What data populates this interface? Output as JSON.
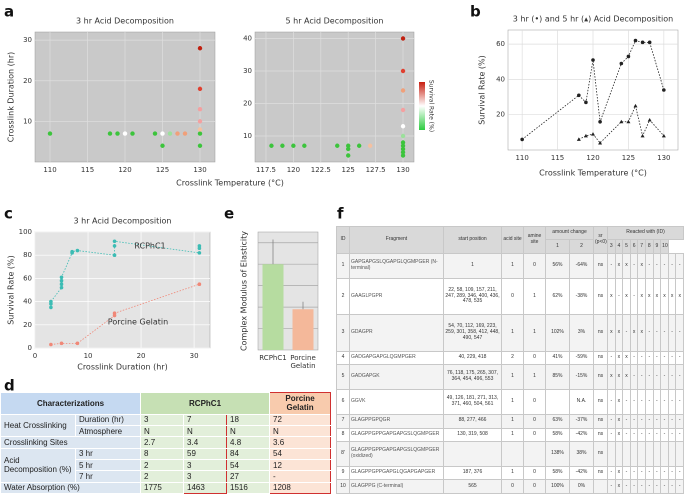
{
  "panel_labels": [
    "a",
    "b",
    "c",
    "d",
    "e",
    "f"
  ],
  "chart_data": [
    {
      "type": "scatter",
      "title": "3 hr Acid Decomposition",
      "ylabel": "Crosslink Duration (hr)",
      "xlabel": "Crosslink Temperature (°C)",
      "xlim": [
        108,
        132
      ],
      "xticks": [
        110,
        115,
        120,
        125,
        130
      ],
      "ylim": [
        0,
        32
      ],
      "yticks": [
        10,
        20,
        30
      ],
      "grid": true,
      "x": [
        110,
        118,
        119,
        120,
        121,
        124,
        125,
        125,
        126,
        127,
        128,
        130,
        130,
        130,
        130,
        130,
        130,
        130
      ],
      "y": [
        7,
        7,
        7,
        7,
        7,
        7,
        7,
        4,
        7,
        7,
        7,
        4,
        7,
        8,
        10,
        13,
        18,
        28
      ],
      "colors": [
        "#3cc43c",
        "#3cc43c",
        "#3cc43c",
        "#ffffff",
        "#3cc43c",
        "#3cc43c",
        "#ffffff",
        "#3cc43c",
        "#9be09b",
        "#f0a07a",
        "#f0a07a",
        "#3cc43c",
        "#3cc43c",
        "#f5c0a0",
        "#f4a0a0",
        "#f4a0a0",
        "#e04030",
        "#c02010"
      ]
    },
    {
      "type": "scatter",
      "title": "5 hr Acid Decomposition",
      "colorbar_label": "Survival Rate (%)",
      "xlim": [
        116.5,
        131
      ],
      "xticks": [
        117.5,
        120,
        122.5,
        125,
        127.5,
        130
      ],
      "ylim": [
        2,
        42
      ],
      "yticks": [
        10,
        20,
        30,
        40
      ],
      "grid": true,
      "x": [
        118,
        119,
        120,
        121,
        124,
        125,
        125,
        125,
        126,
        127,
        130,
        130,
        130,
        130,
        130,
        130,
        130,
        130,
        130,
        130,
        130
      ],
      "y": [
        7,
        7,
        7,
        7,
        7,
        7,
        6,
        4,
        7,
        7,
        4,
        5,
        6,
        7,
        8,
        10,
        13,
        18,
        24,
        30,
        40
      ],
      "colors": [
        "#3cc43c",
        "#3cc43c",
        "#3cc43c",
        "#3cc43c",
        "#3cc43c",
        "#3cc43c",
        "#3cc43c",
        "#3cc43c",
        "#3cc43c",
        "#f5c0a0",
        "#3cc43c",
        "#3cc43c",
        "#3cc43c",
        "#3cc43c",
        "#3cc43c",
        "#9be09b",
        "#ffffff",
        "#f4a0a0",
        "#f0a07a",
        "#e04030",
        "#c02010"
      ]
    },
    {
      "type": "line",
      "title": "3 hr (•) and 5 hr (▴) Acid Decomposition",
      "ylabel": "Survival Rate (%)",
      "xlabel": "Crosslink Temperature (°C)",
      "xlim": [
        108,
        132
      ],
      "xticks": [
        110,
        115,
        120,
        125,
        130
      ],
      "ylim": [
        0,
        68
      ],
      "yticks": [
        20,
        40,
        60
      ],
      "grid": true,
      "series": [
        {
          "color": "#222222",
          "marker": "circle",
          "x": [
            110,
            118,
            119,
            120,
            121,
            124,
            125,
            126,
            127,
            128,
            130
          ],
          "values": [
            6,
            31,
            27,
            51,
            16,
            49,
            53,
            62,
            61,
            61,
            34
          ]
        },
        {
          "color": "#222222",
          "marker": "triangle",
          "x": [
            118,
            119,
            120,
            121,
            124,
            125,
            126,
            127,
            128,
            130
          ],
          "values": [
            6,
            8,
            9,
            4,
            16,
            16,
            25,
            8,
            17,
            8
          ]
        }
      ]
    },
    {
      "type": "line",
      "title": "3 hr Acid Decomposition",
      "ylabel": "Survival Rate (%)",
      "xlabel": "Crosslink Duration (hr)",
      "xlim": [
        0,
        33
      ],
      "xticks": [
        0,
        10,
        20,
        30
      ],
      "ylim": [
        0,
        100
      ],
      "yticks": [
        0,
        20,
        40,
        60,
        80,
        100
      ],
      "grid": true,
      "series": [
        {
          "name": "RCPhC1",
          "color": "#3cbcb4",
          "marker": "circle",
          "x": [
            3,
            3,
            3,
            5,
            5,
            5,
            5,
            7,
            7,
            8,
            15,
            15,
            15,
            31,
            31,
            31
          ],
          "values": [
            35,
            38,
            40,
            52,
            55,
            58,
            61,
            82,
            83,
            84,
            80,
            88,
            92,
            82,
            86,
            88
          ]
        },
        {
          "name": "Porcine Gelatin",
          "color": "#f08878",
          "marker": "circle",
          "x": [
            3,
            5,
            8,
            15,
            15,
            31
          ],
          "values": [
            3,
            4,
            4,
            28,
            30,
            55
          ]
        }
      ]
    },
    {
      "type": "bar",
      "ylabel": "Complex Modulus of Elasticity",
      "categories": [
        "RCPhC1",
        "Porcine Gelatin"
      ],
      "values": [
        80,
        38
      ],
      "errors": [
        23,
        7
      ],
      "colors": [
        "#b6dca0",
        "#f4b89a"
      ],
      "ylim": [
        0,
        110
      ],
      "grid_lines": [
        20,
        40,
        60,
        80,
        100
      ]
    }
  ],
  "table_d": {
    "header": [
      "Characterizations",
      "RCPhC1",
      "Porcine Gelatin"
    ],
    "rows": [
      {
        "label": "Heat Crosslinking",
        "sub": [
          {
            "label": "Duration (hr)",
            "cells": [
              "3",
              "7",
              "18",
              "72"
            ]
          },
          {
            "label": "Atmosphere",
            "cells": [
              "N",
              "N",
              "N",
              "N"
            ]
          }
        ]
      },
      {
        "label": "Crosslinking Sites",
        "cells": [
          "2.7",
          "3.4",
          "4.8",
          "3.6"
        ]
      },
      {
        "label": "Acid Decomposition (%)",
        "sub": [
          {
            "label": "3 hr",
            "cells": [
              "8",
              "59",
              "84",
              "54"
            ]
          },
          {
            "label": "5 hr",
            "cells": [
              "2",
              "3",
              "54",
              "12"
            ]
          },
          {
            "label": "7 hr",
            "cells": [
              "2",
              "3",
              "27",
              "-"
            ]
          }
        ]
      },
      {
        "label": "Water Absorption (%)",
        "cells": [
          "1775",
          "1463",
          "1516",
          "1208"
        ]
      }
    ]
  },
  "table_f": {
    "headers": [
      "ID",
      "Fragment",
      "start position",
      "acid site",
      "amine site",
      "amount change",
      "sr (p<0)",
      "Reacted with (ID)"
    ],
    "reacted_ids": [
      "1",
      "2",
      "3",
      "4",
      "5",
      "6",
      "7",
      "8",
      "9",
      "10"
    ],
    "rows": [
      {
        "cells": [
          "1",
          "GAPGAPGSLQGAPGLQGMPGER (N-terminal)",
          "1",
          "1",
          "0",
          "56%",
          "-64%",
          "ns"
        ],
        "reacted": [
          "-",
          "x",
          "x",
          "-",
          "x",
          "-",
          "-",
          "-",
          "-",
          "-"
        ]
      },
      {
        "cells": [
          "2",
          "GAAGLPGPR",
          "22, 58, 109, 157, 211, 247, 289, 346, 400, 436, 478, 535",
          "0",
          "1",
          "62%",
          "-38%",
          "ns"
        ],
        "reacted": [
          "x",
          "-",
          "x",
          "-",
          "x",
          "x",
          "x",
          "x",
          "x",
          "x"
        ]
      },
      {
        "cells": [
          "3",
          "GDAGPR",
          "54, 70, 112, 169, 223, 259, 301, 358, 412, 448, 490, 547",
          "1",
          "1",
          "102%",
          "3%",
          "ns"
        ],
        "reacted": [
          "x",
          "x",
          "-",
          "x",
          "x",
          "-",
          "-",
          "-",
          "-",
          "-"
        ]
      },
      {
        "cells": [
          "4",
          "GADGAPGAPGLQGMPGER",
          "40, 229, 418",
          "2",
          "0",
          "41%",
          "-59%",
          "ns"
        ],
        "reacted": [
          "-",
          "x",
          "x",
          "-",
          "-",
          "-",
          "-",
          "-",
          "-",
          "-"
        ]
      },
      {
        "cells": [
          "5",
          "GADGAPGK",
          "76, 118, 175, 265, 307, 364, 454, 496, 553",
          "1",
          "1",
          "85%",
          "-15%",
          "ns"
        ],
        "reacted": [
          "x",
          "x",
          "x",
          "-",
          "-",
          "-",
          "-",
          "-",
          "-",
          "-"
        ]
      },
      {
        "cells": [
          "6",
          "GGVK",
          "49, 126, 181, 271, 313, 371, 460, 504, 561",
          "1",
          "0",
          null,
          "N.A.",
          "ns"
        ],
        "reacted": [
          "-",
          "x",
          "-",
          "-",
          "-",
          "-",
          "-",
          "-",
          "-",
          "-"
        ]
      },
      {
        "cells": [
          "7",
          "GLAGPPGPQGR",
          "88, 277, 466",
          "1",
          "0",
          "63%",
          "-37%",
          "ns"
        ],
        "reacted": [
          "-",
          "x",
          "-",
          "-",
          "-",
          "-",
          "-",
          "-",
          "-",
          "-"
        ]
      },
      {
        "cells": [
          "8",
          "GLAGPPGPPGAPGAPGSLQGMPGER",
          "130, 319, 508",
          "1",
          "0",
          "58%",
          "-42%",
          "ns"
        ],
        "reacted": [
          "-",
          "x",
          "-",
          "-",
          "-",
          "-",
          "-",
          "-",
          "-",
          "-"
        ]
      },
      {
        "cells": [
          "8'",
          "GLAGPPGPPGAPGAPGSLQGMPGER (oxidized)",
          null,
          null,
          null,
          "138%",
          "38%",
          "ns"
        ],
        "reacted": [
          null,
          null,
          null,
          null,
          null,
          null,
          null,
          null,
          null,
          null
        ]
      },
      {
        "cells": [
          "9",
          "GLAGPPGPPGAPGLQGAPGAPGER",
          "187, 376",
          "1",
          "0",
          "58%",
          "-42%",
          "ns"
        ],
        "reacted": [
          "-",
          "x",
          "-",
          "-",
          "-",
          "-",
          "-",
          "-",
          "-",
          "-"
        ]
      },
      {
        "cells": [
          "10",
          "GLAGPPG (C-terminal)",
          "565",
          "0",
          "0",
          "100%",
          "0%",
          null
        ],
        "reacted": [
          "-",
          "x",
          "-",
          "-",
          "-",
          "-",
          "-",
          "-",
          "-",
          "-"
        ]
      }
    ]
  }
}
